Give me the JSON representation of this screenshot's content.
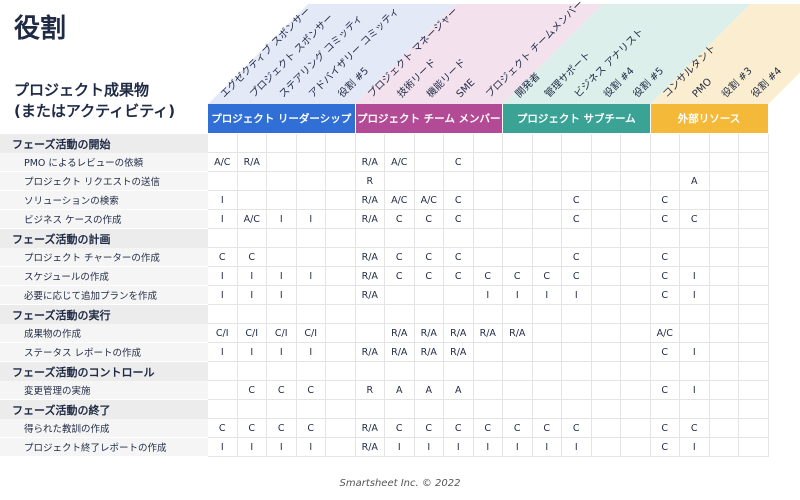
{
  "title": "役割",
  "deliverable_header": "プロジェクト成果物\n(またはアクティビティ)",
  "roles": [
    "エグゼクティブ スポンサー",
    "プロジェクト スポンサー",
    "ステアリング コミッティ",
    "アドバイザリー コミッティ",
    "役割 #5",
    "プロジェクト マネージャー",
    "技術リード",
    "機能リード",
    "SME",
    "プロジェクト チームメンバー",
    "開発者",
    "管理サポート",
    "ビジネス アナリスト",
    "役割 #4",
    "役割 #5",
    "コンサルタント",
    "PMO",
    "役割 #3",
    "役割 #4"
  ],
  "groups": [
    {
      "label": "プロジェクト リーダーシップ",
      "color": "#2f6fd6",
      "band": "#e4e9f7"
    },
    {
      "label": "プロジェクト チーム メンバー",
      "color": "#b24a96",
      "band": "#f3e2ee"
    },
    {
      "label": "プロジェクト サブチーム",
      "color": "#3aa395",
      "band": "#dcefeb"
    },
    {
      "label": "外部リソース",
      "color": "#f5b93a",
      "band": "#fbeed0"
    }
  ],
  "rows": [
    {
      "type": "section",
      "label": "フェーズ活動の開始"
    },
    {
      "type": "task",
      "label": "PMO によるレビューの依頼",
      "cells": [
        "A/C",
        "R/A",
        "",
        "",
        "",
        "R/A",
        "A/C",
        "",
        "C",
        "",
        "",
        "",
        "",
        "",
        "",
        "",
        "",
        "",
        ""
      ]
    },
    {
      "type": "task",
      "label": "プロジェクト リクエストの送信",
      "cells": [
        "",
        "",
        "",
        "",
        "",
        "R",
        "",
        "",
        "",
        "",
        "",
        "",
        "",
        "",
        "",
        "",
        "A",
        "",
        ""
      ]
    },
    {
      "type": "task",
      "label": "ソリューションの検索",
      "cells": [
        "I",
        "",
        "",
        "",
        "",
        "R/A",
        "A/C",
        "A/C",
        "C",
        "",
        "",
        "",
        "C",
        "",
        "",
        "C",
        "",
        "",
        ""
      ]
    },
    {
      "type": "task",
      "label": "ビジネス ケースの作成",
      "cells": [
        "I",
        "A/C",
        "I",
        "I",
        "",
        "R/A",
        "C",
        "C",
        "C",
        "",
        "",
        "",
        "C",
        "",
        "",
        "C",
        "C",
        "",
        ""
      ]
    },
    {
      "type": "section",
      "label": "フェーズ活動の計画"
    },
    {
      "type": "task",
      "label": "プロジェクト チャーターの作成",
      "cells": [
        "C",
        "C",
        "",
        "",
        "",
        "R/A",
        "C",
        "C",
        "C",
        "",
        "",
        "",
        "C",
        "",
        "",
        "C",
        "",
        "",
        ""
      ]
    },
    {
      "type": "task",
      "label": "スケジュールの作成",
      "cells": [
        "I",
        "I",
        "I",
        "I",
        "",
        "R/A",
        "C",
        "C",
        "C",
        "C",
        "C",
        "C",
        "C",
        "",
        "",
        "C",
        "I",
        "",
        ""
      ]
    },
    {
      "type": "task",
      "label": "必要に応じて追加プランを作成",
      "cells": [
        "I",
        "I",
        "I",
        "",
        "",
        "R/A",
        "",
        "",
        "",
        "I",
        "I",
        "I",
        "I",
        "",
        "",
        "C",
        "I",
        "",
        ""
      ]
    },
    {
      "type": "section",
      "label": "フェーズ活動の実行"
    },
    {
      "type": "task",
      "label": "成果物の作成",
      "cells": [
        "C/I",
        "C/I",
        "C/I",
        "C/I",
        "",
        "",
        "R/A",
        "R/A",
        "R/A",
        "R/A",
        "R/A",
        "",
        "",
        "",
        "",
        "A/C",
        "",
        "",
        ""
      ]
    },
    {
      "type": "task",
      "label": "ステータス レポートの作成",
      "cells": [
        "I",
        "I",
        "I",
        "I",
        "",
        "R/A",
        "R/A",
        "R/A",
        "R/A",
        "",
        "",
        "",
        "",
        "",
        "",
        "C",
        "I",
        "",
        ""
      ]
    },
    {
      "type": "section",
      "label": "フェーズ活動のコントロール"
    },
    {
      "type": "task",
      "label": "変更管理の実施",
      "cells": [
        "",
        "C",
        "C",
        "C",
        "",
        "R",
        "A",
        "A",
        "A",
        "",
        "",
        "",
        "",
        "",
        "",
        "C",
        "I",
        "",
        ""
      ]
    },
    {
      "type": "section",
      "label": "フェーズ活動の終了"
    },
    {
      "type": "task",
      "label": "得られた教訓の作成",
      "cells": [
        "C",
        "C",
        "C",
        "C",
        "",
        "R/A",
        "C",
        "C",
        "C",
        "C",
        "C",
        "C",
        "C",
        "",
        "",
        "C",
        "C",
        "",
        ""
      ]
    },
    {
      "type": "task",
      "label": "プロジェクト終了レポートの作成",
      "cells": [
        "I",
        "I",
        "I",
        "I",
        "",
        "R/A",
        "I",
        "I",
        "I",
        "I",
        "I",
        "I",
        "I",
        "",
        "",
        "C",
        "I",
        "",
        ""
      ]
    }
  ],
  "footer": "Smartsheet Inc. © 2022"
}
